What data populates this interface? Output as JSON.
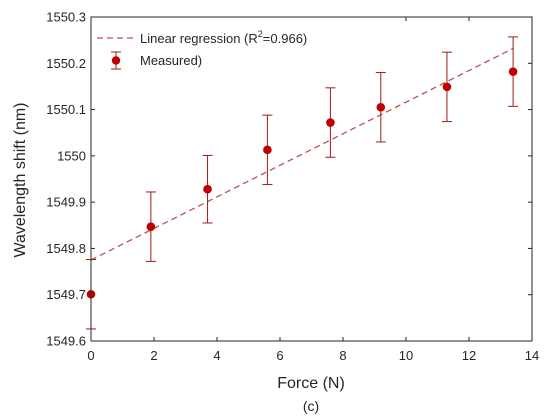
{
  "chart_data": {
    "type": "scatter",
    "title": "",
    "xlabel": "Force (N)",
    "ylabel": "Wavelength shift (nm)",
    "caption": "(c)",
    "xlim": [
      0,
      14
    ],
    "ylim": [
      1549.6,
      1550.3
    ],
    "x_ticks": [
      0,
      2,
      4,
      6,
      8,
      10,
      12,
      14
    ],
    "x_tick_labels": [
      "0",
      "2",
      "4",
      "6",
      "8",
      "10",
      "12",
      "14"
    ],
    "y_ticks": [
      1549.6,
      1549.7,
      1549.8,
      1549.9,
      1550.0,
      1550.1,
      1550.2,
      1550.3
    ],
    "y_tick_labels": [
      "1549.6",
      "1549.7",
      "1549.8",
      "1549.9",
      "1550",
      "1550.1",
      "1550.2",
      "1550.3"
    ],
    "grid": false,
    "legend_position": "top-left",
    "series": [
      {
        "name": "Measured)",
        "kind": "markers-with-errorbars",
        "color": "#c00000",
        "x": [
          0,
          1.9,
          3.7,
          5.6,
          7.6,
          9.2,
          11.3,
          13.4
        ],
        "y": [
          1549.701,
          1549.847,
          1549.928,
          1550.013,
          1550.072,
          1550.105,
          1550.149,
          1550.182
        ],
        "error": [
          0.075,
          0.075,
          0.073,
          0.075,
          0.075,
          0.075,
          0.075,
          0.075
        ]
      },
      {
        "name": "Linear regression (R",
        "name_superscript": "2",
        "name_suffix": "=0.966)",
        "kind": "dashed-line",
        "color": "#c0504d",
        "x": [
          0,
          13.4
        ],
        "y": [
          1549.775,
          1550.232
        ]
      }
    ]
  }
}
